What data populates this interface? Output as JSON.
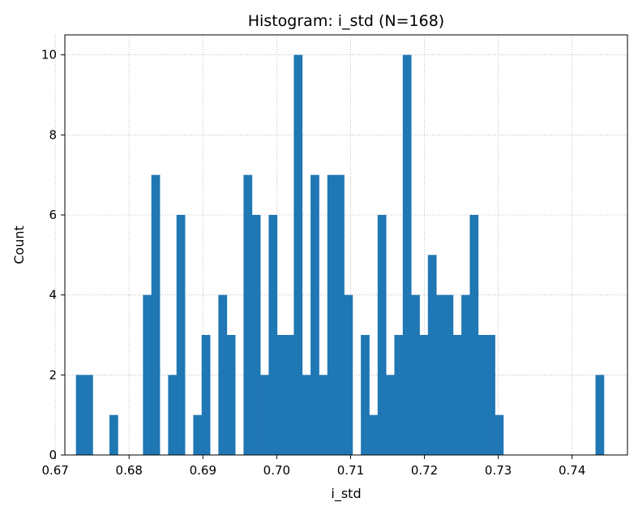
{
  "chart_data": {
    "type": "bar",
    "title": "Histogram: i_std  (N=168)",
    "xlabel": "i_std",
    "ylabel": "Count",
    "xlim": [
      0.6713,
      0.7475
    ],
    "ylim": [
      0,
      10.5
    ],
    "grid": true,
    "grid_style": "dotted",
    "bar_color": "#1f77b4",
    "bin_start": 0.6728,
    "bin_width": 0.001135,
    "counts": [
      2,
      2,
      0,
      0,
      1,
      0,
      0,
      0,
      4,
      7,
      0,
      2,
      6,
      0,
      1,
      3,
      0,
      4,
      3,
      0,
      7,
      6,
      2,
      6,
      3,
      3,
      10,
      2,
      7,
      2,
      7,
      7,
      4,
      0,
      3,
      1,
      6,
      2,
      3,
      10,
      4,
      3,
      5,
      4,
      4,
      3,
      4,
      6,
      3,
      3,
      1,
      0,
      0,
      0,
      0,
      0,
      0,
      0,
      0,
      0,
      0,
      0,
      2
    ],
    "xticks": [
      0.67,
      0.68,
      0.69,
      0.7,
      0.71,
      0.72,
      0.73,
      0.74
    ],
    "xtick_labels": [
      "0.67",
      "0.68",
      "0.69",
      "0.70",
      "0.71",
      "0.72",
      "0.73",
      "0.74"
    ],
    "yticks": [
      0,
      2,
      4,
      6,
      8,
      10
    ],
    "ytick_labels": [
      "0",
      "2",
      "4",
      "6",
      "8",
      "10"
    ]
  }
}
